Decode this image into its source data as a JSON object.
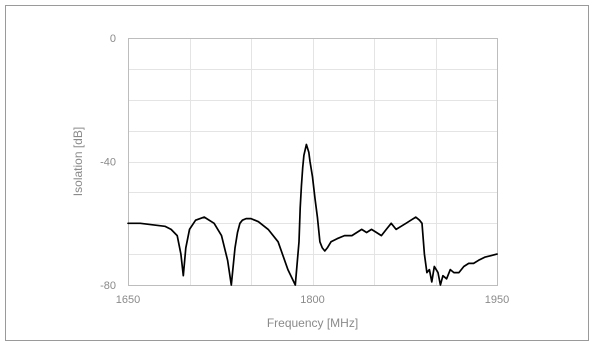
{
  "chart_data": {
    "type": "line",
    "xlabel": "Frequency [MHz]",
    "ylabel": "Isolation  [dB]",
    "xlim": [
      1650,
      1950
    ],
    "ylim": [
      -80,
      0
    ],
    "x_ticks": [
      1650,
      1800,
      1950
    ],
    "y_ticks": [
      0,
      -40,
      -80
    ],
    "grid": true,
    "line_color": "#000000",
    "series": [
      {
        "x": [
          1650,
          1660,
          1670,
          1680,
          1685,
          1690,
          1693,
          1695,
          1697,
          1700,
          1705,
          1712,
          1720,
          1726,
          1731,
          1734,
          1737,
          1739,
          1741,
          1743,
          1746,
          1750,
          1756,
          1764,
          1772,
          1780,
          1786,
          1789,
          1790,
          1791,
          1792,
          1793,
          1795,
          1797,
          1798,
          1800,
          1802,
          1804,
          1806,
          1808,
          1810,
          1812,
          1815,
          1820,
          1826,
          1832,
          1836,
          1840,
          1844,
          1848,
          1852,
          1856,
          1860,
          1864,
          1868,
          1872,
          1876,
          1880,
          1884,
          1887,
          1889,
          1891,
          1893,
          1895,
          1897,
          1899,
          1902,
          1904,
          1906,
          1909,
          1912,
          1915,
          1919,
          1923,
          1927,
          1931,
          1935,
          1940,
          1945,
          1950
        ],
        "y": [
          -60,
          -60,
          -60.5,
          -61,
          -62,
          -64,
          -70,
          -77,
          -68,
          -62,
          -59,
          -58,
          -60,
          -64,
          -72,
          -82,
          -68,
          -63,
          -60,
          -59,
          -58.5,
          -58.5,
          -59.5,
          -62,
          -66,
          -75,
          -85,
          -66,
          -55,
          -48,
          -42,
          -38,
          -34.5,
          -37,
          -40,
          -45,
          -52,
          -58,
          -66,
          -68,
          -69,
          -68,
          -66,
          -65,
          -64,
          -64,
          -63,
          -62,
          -63,
          -62,
          -63,
          -64,
          -62,
          -60,
          -62,
          -61,
          -60,
          -59,
          -58,
          -59,
          -60,
          -70,
          -76,
          -75,
          -79,
          -74,
          -76,
          -80,
          -77,
          -78,
          -75,
          -76,
          -76,
          -74,
          -73,
          -73,
          -72,
          -71,
          -70.5,
          -70
        ]
      }
    ]
  }
}
